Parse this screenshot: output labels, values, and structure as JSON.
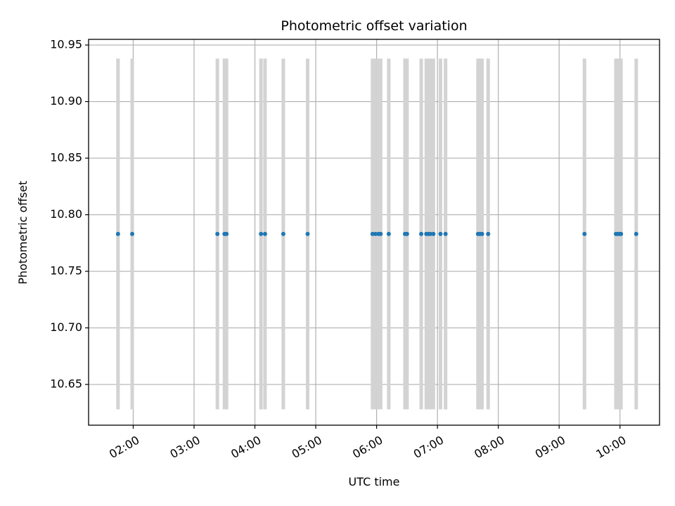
{
  "chart_data": {
    "type": "scatter",
    "title": "Photometric offset variation",
    "xlabel": "UTC time",
    "ylabel": "Photometric offset",
    "x_axis": "time",
    "xlim": [
      "01:16",
      "10:39"
    ],
    "ylim": [
      10.614,
      10.955
    ],
    "x_ticks": [
      "02:00",
      "03:00",
      "04:00",
      "05:00",
      "06:00",
      "07:00",
      "08:00",
      "09:00",
      "10:00"
    ],
    "y_ticks": [
      10.65,
      10.7,
      10.75,
      10.8,
      10.85,
      10.9,
      10.95
    ],
    "y_tick_labels": [
      "10.65",
      "10.70",
      "10.75",
      "10.80",
      "10.85",
      "10.90",
      "10.95"
    ],
    "grid": true,
    "error_bar_range": [
      10.628,
      10.938
    ],
    "series": [
      {
        "marker_color": "#1f77b4",
        "error_bar_color": "#d3d3d3",
        "y": 10.783,
        "x": [
          "01:45",
          "01:59",
          "03:23",
          "03:30",
          "03:32",
          "04:06",
          "04:10",
          "04:28",
          "04:52",
          "05:56",
          "05:59",
          "06:02",
          "06:04",
          "06:12",
          "06:28",
          "06:30",
          "06:44",
          "06:49",
          "06:51",
          "06:53",
          "06:56",
          "07:03",
          "07:08",
          "07:40",
          "07:42",
          "07:44",
          "07:50",
          "09:25",
          "09:56",
          "09:58",
          "10:00",
          "10:01",
          "10:16"
        ]
      }
    ]
  }
}
